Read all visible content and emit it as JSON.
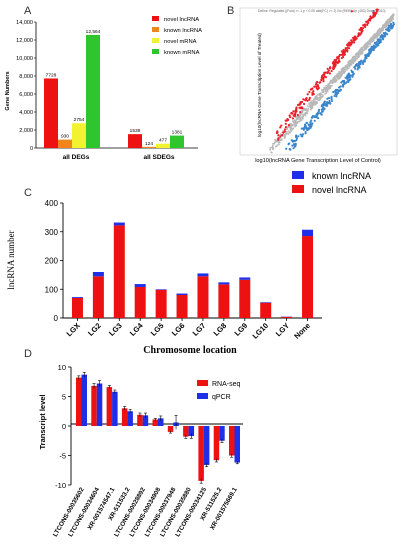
{
  "panels": {
    "a": "A",
    "b": "B",
    "c": "C",
    "d": "D"
  },
  "colors": {
    "novel_lncrna": "#ee1111",
    "known_lncrna": "#f0851c",
    "novel_mrna": "#f2f230",
    "known_mrna": "#2ec52e",
    "blue": "#1f2ee8",
    "red": "#ee1111",
    "scatter_up": "#e8202a",
    "scatter_down": "#3a86cc",
    "scatter_ns": "#b8b8b8"
  },
  "chart_data": [
    {
      "id": "A",
      "type": "bar",
      "categories": [
        "all DEGs",
        "all SDEGs"
      ],
      "series": [
        {
          "name": "novel lncRNA",
          "values": [
            7728,
            1539
          ]
        },
        {
          "name": "known lncRNA",
          "values": [
            930,
            124
          ]
        },
        {
          "name": "novel mRNA",
          "values": [
            2754,
            477
          ]
        },
        {
          "name": "known mRNA",
          "values": [
            12564,
            1381
          ]
        }
      ],
      "data_labels": [
        [
          "7728",
          "930",
          "2754",
          "12,564"
        ],
        [
          "1539",
          "124",
          "477",
          "1381"
        ]
      ],
      "ylabel": "Gene Numbers",
      "yticks": [
        "0",
        "2,000",
        "4,000",
        "6,000",
        "8,000",
        "10,000",
        "12,000",
        "14,000"
      ],
      "ylim": [
        0,
        14000
      ],
      "legend": "top-right"
    },
    {
      "id": "B",
      "type": "scatter",
      "legend_text": "Define: Regulated (|Fold| >= 1 p < 0.05 abs(FC) >= 2)   No (9999)   Up (453)   Down (1310)",
      "xlabel": "log10(lncRNA Gene  Transcription Level of Control)",
      "ylabel": "log10(lncRNA Gene Transcription Level of Treated)"
    },
    {
      "id": "C",
      "type": "bar",
      "stacked": true,
      "categories": [
        "LGX",
        "LG2",
        "LG3",
        "LG4",
        "LG5",
        "LG6",
        "LG7",
        "LG8",
        "LG9",
        "LG10",
        "LGY",
        "None"
      ],
      "series": [
        {
          "name": "known lncRNA",
          "values": [
            3,
            15,
            10,
            10,
            2,
            5,
            10,
            7,
            8,
            2,
            1,
            22
          ]
        },
        {
          "name": "novel lncRNA",
          "values": [
            70,
            145,
            322,
            108,
            98,
            80,
            145,
            117,
            133,
            53,
            4,
            285
          ]
        }
      ],
      "xlabel": "Chromosome location",
      "ylabel": "lncRNA number",
      "yticks": [
        "0",
        "100",
        "200",
        "300",
        "400"
      ],
      "ylim": [
        0,
        400
      ],
      "legend": "top-right"
    },
    {
      "id": "D",
      "type": "bar",
      "categories": [
        "LTCONS-00035602",
        "LTCONS-00034604",
        "XR-001574547.1",
        "XR-511533.2",
        "LTCONS-00028892",
        "LTCONS-00034908",
        "LTCONS-00037948",
        "LTCONS-00035880",
        "LTCONS-00034125",
        "XR-511525.2",
        "XR-001575669.1"
      ],
      "series": [
        {
          "name": "RNA-seq",
          "values": [
            8.2,
            6.8,
            6.6,
            3.0,
            1.9,
            1.1,
            -1.0,
            -1.8,
            -9.3,
            -5.8,
            -5.0
          ]
        },
        {
          "name": "qPCR",
          "values": [
            8.7,
            7.2,
            5.8,
            2.5,
            1.8,
            1.3,
            0.6,
            -1.7,
            -6.6,
            -2.5,
            -6.2
          ]
        }
      ],
      "errors": [
        [
          0.3,
          0.4,
          0.3,
          0.3,
          0.3,
          0.2,
          0.2,
          0.3,
          0.4,
          0.3,
          0.3
        ],
        [
          0.4,
          0.5,
          0.3,
          0.3,
          0.4,
          0.4,
          1.2,
          0.4,
          0.3,
          0.3,
          0.2
        ]
      ],
      "ylabel": "Transcript level",
      "yticks": [
        "-10",
        "-5",
        "0",
        "5",
        "10"
      ],
      "ylim": [
        -10,
        10
      ],
      "legend": "top-right"
    }
  ]
}
